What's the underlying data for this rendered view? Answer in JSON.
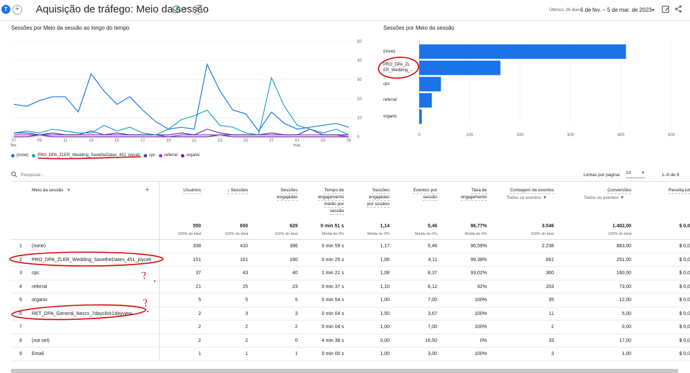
{
  "header": {
    "avatar_letter": "T",
    "title": "Aquisição de tráfego: Meio da sessão",
    "date_label": "Últimos 28 dias",
    "date_range": "6 de fev. – 5 de mar. de 2023",
    "colors": {
      "accent": "#1a73e8",
      "ok": "#188038"
    }
  },
  "line_chart": {
    "title": "Sessões por Meio da sessão ao longo do tempo",
    "chart_data": {
      "type": "line",
      "x": [
        "07 fev.",
        "08",
        "09",
        "10",
        "11",
        "12",
        "13",
        "14",
        "15",
        "16",
        "17",
        "18",
        "19",
        "20",
        "21",
        "22",
        "23",
        "24",
        "25",
        "26",
        "27",
        "28",
        "01 mar.",
        "02",
        "03",
        "04",
        "05"
      ],
      "x_tick_labels": [
        "07",
        "fev.",
        "09",
        "11",
        "13",
        "15",
        "17",
        "19",
        "21",
        "23",
        "25",
        "27",
        "01",
        "mar.",
        "03",
        "05"
      ],
      "ylim": [
        0,
        50
      ],
      "y_ticks": [
        "0",
        "10",
        "20",
        "30",
        "40",
        "50"
      ],
      "series": [
        {
          "name": "(none)",
          "color": "#1a73e8",
          "values": [
            17,
            16,
            19,
            21,
            21,
            13,
            33,
            24,
            17,
            21,
            14,
            8,
            4,
            5,
            4,
            38,
            24,
            14,
            12,
            3,
            13,
            7,
            4,
            5,
            6,
            7,
            5
          ]
        },
        {
          "name": "PRO_DPA_ZLER_Wedding_SavetheDates_451_joyceli",
          "color": "#12a4c9",
          "values": [
            2,
            3,
            2,
            4,
            3,
            2,
            2,
            6,
            3,
            5,
            2,
            1,
            4,
            9,
            11,
            14,
            6,
            5,
            2,
            1,
            31,
            16,
            6,
            4,
            2,
            4,
            1
          ]
        },
        {
          "name": "cpc",
          "color": "#5e35b1",
          "values": [
            2,
            2,
            1,
            2,
            1,
            1,
            3,
            1,
            2,
            1,
            1,
            1,
            1,
            2,
            1,
            4,
            2,
            1,
            1,
            1,
            2,
            1,
            1,
            4,
            1,
            1,
            1
          ]
        },
        {
          "name": "referral",
          "color": "#9334e6",
          "values": [
            1,
            1,
            1,
            1,
            1,
            1,
            1,
            1,
            1,
            1,
            1,
            1,
            0,
            1,
            1,
            1,
            1,
            1,
            1,
            1,
            1,
            1,
            1,
            1,
            1,
            1,
            0
          ]
        },
        {
          "name": "organic",
          "color": "#7b1fa2",
          "values": [
            0,
            0,
            1,
            0,
            0,
            0,
            0,
            0,
            0,
            0,
            0,
            0,
            0,
            0,
            0,
            0,
            1,
            0,
            0,
            0,
            0,
            0,
            0,
            0,
            0,
            0,
            0
          ]
        }
      ]
    }
  },
  "bar_chart": {
    "title": "Sessões por Meio da sessão",
    "chart_data": {
      "type": "bar",
      "orientation": "horizontal",
      "categories": [
        "(none)",
        "PRO_DPA_ZLER_Wedding_...",
        "cpc",
        "referral",
        "organic"
      ],
      "category_lines": [
        [
          "(none)"
        ],
        [
          "PRO_DPA_ZL",
          "ER_Wedding_..."
        ],
        [
          "cpc"
        ],
        [
          "referral"
        ],
        [
          "organic"
        ]
      ],
      "values": [
        410,
        161,
        43,
        25,
        5
      ],
      "xlim": [
        0,
        500
      ],
      "x_ticks": [
        "0",
        "100",
        "200",
        "300",
        "400",
        "500"
      ],
      "color": "#1a73e8"
    }
  },
  "toolbar": {
    "search_placeholder": "Pesquisar...",
    "rows_per_page_label": "Linhas por página:",
    "rows_per_page_value": "10",
    "range_text": "1–9 de 9"
  },
  "table": {
    "dimension_header": "Meio da sessão",
    "columns": [
      {
        "label": [
          "Usuários"
        ],
        "total": "550",
        "total_sub": "100% do total"
      },
      {
        "label": [
          "Sessões"
        ],
        "sorted": true,
        "total": "650",
        "total_sub": "100% do total"
      },
      {
        "label": [
          "Sessões",
          "engajadas"
        ],
        "total": "629",
        "total_sub": "100% do total"
      },
      {
        "label": [
          "Tempo de",
          "engajamento",
          "médio por",
          "sessão"
        ],
        "total": "0 min 51 s",
        "total_sub": "Média de 0%"
      },
      {
        "label": [
          "Sessões",
          "engajadas",
          "por usuário"
        ],
        "total": "1,14",
        "total_sub": "Média de 0%"
      },
      {
        "label": [
          "Eventos por",
          "sessão"
        ],
        "total": "5,46",
        "total_sub": "Média de 0%"
      },
      {
        "label": [
          "Taxa de",
          "engajamento"
        ],
        "total": "96,77%",
        "total_sub": "Média de 0%"
      },
      {
        "label": [
          "Contagem de eventos"
        ],
        "filter": "Todos os eventos",
        "total": "3.546",
        "total_sub": "100% do total"
      },
      {
        "label": [
          "Conversões"
        ],
        "filter": "Todos os eventos",
        "total": "1.402,00",
        "total_sub": "100% do total"
      },
      {
        "label": [
          "Receita tot"
        ],
        "total": "$ 0,0",
        "total_sub": ""
      }
    ],
    "rows": [
      {
        "idx": "1",
        "name": "(none)",
        "values": [
          "338",
          "410",
          "396",
          "0 min 59 s",
          "1,17",
          "5,46",
          "96,59%",
          "2.238",
          "883,00",
          "$ 0,0"
        ]
      },
      {
        "idx": "2",
        "name": "PRO_DPA_ZLER_Wedding_SavetheDates_451_joyceli",
        "values": [
          "151",
          "161",
          "160",
          "0 min 25 s",
          "1,06",
          "4,11",
          "99,38%",
          "661",
          "251,00",
          "$ 0,0"
        ]
      },
      {
        "idx": "3",
        "name": "cpc",
        "values": [
          "37",
          "43",
          "40",
          "1 min 21 s",
          "1,08",
          "8,37",
          "93,02%",
          "360",
          "160,00",
          "$ 0,0"
        ]
      },
      {
        "idx": "4",
        "name": "referral",
        "values": [
          "21",
          "25",
          "23",
          "0 min 37 s",
          "1,10",
          "8,12",
          "92%",
          "203",
          "73,00",
          "$ 0,0"
        ]
      },
      {
        "idx": "5",
        "name": "organic",
        "values": [
          "5",
          "5",
          "5",
          "0 min 54 s",
          "1,00",
          "7,00",
          "100%",
          "35",
          "12,00",
          "$ 0,0"
        ]
      },
      {
        "idx": "6",
        "name": "RET_DPA_General_Necro_7dayclick1dayview",
        "values": [
          "2",
          "3",
          "3",
          "0 min 04 s",
          "1,50",
          "3,67",
          "100%",
          "11",
          "5,00",
          "$ 0,0"
        ]
      },
      {
        "idx": "7",
        "name": "",
        "values": [
          "2",
          "2",
          "2",
          "0 min 04 s",
          "1,00",
          "7,00",
          "100%",
          "2",
          "0,00",
          "$ 0,0"
        ]
      },
      {
        "idx": "8",
        "name": "(not set)",
        "values": [
          "2",
          "2",
          "0",
          "4 min 38 s",
          "0,00",
          "16,50",
          "0%",
          "33",
          "17,00",
          "$ 0,0"
        ]
      },
      {
        "idx": "9",
        "name": "Email",
        "values": [
          "1",
          "1",
          "1",
          "0 min 00 s",
          "1,00",
          "3,00",
          "100%",
          "3",
          "1,00",
          "$ 0,0"
        ]
      }
    ]
  },
  "annotations": {
    "question_mark": "?"
  }
}
